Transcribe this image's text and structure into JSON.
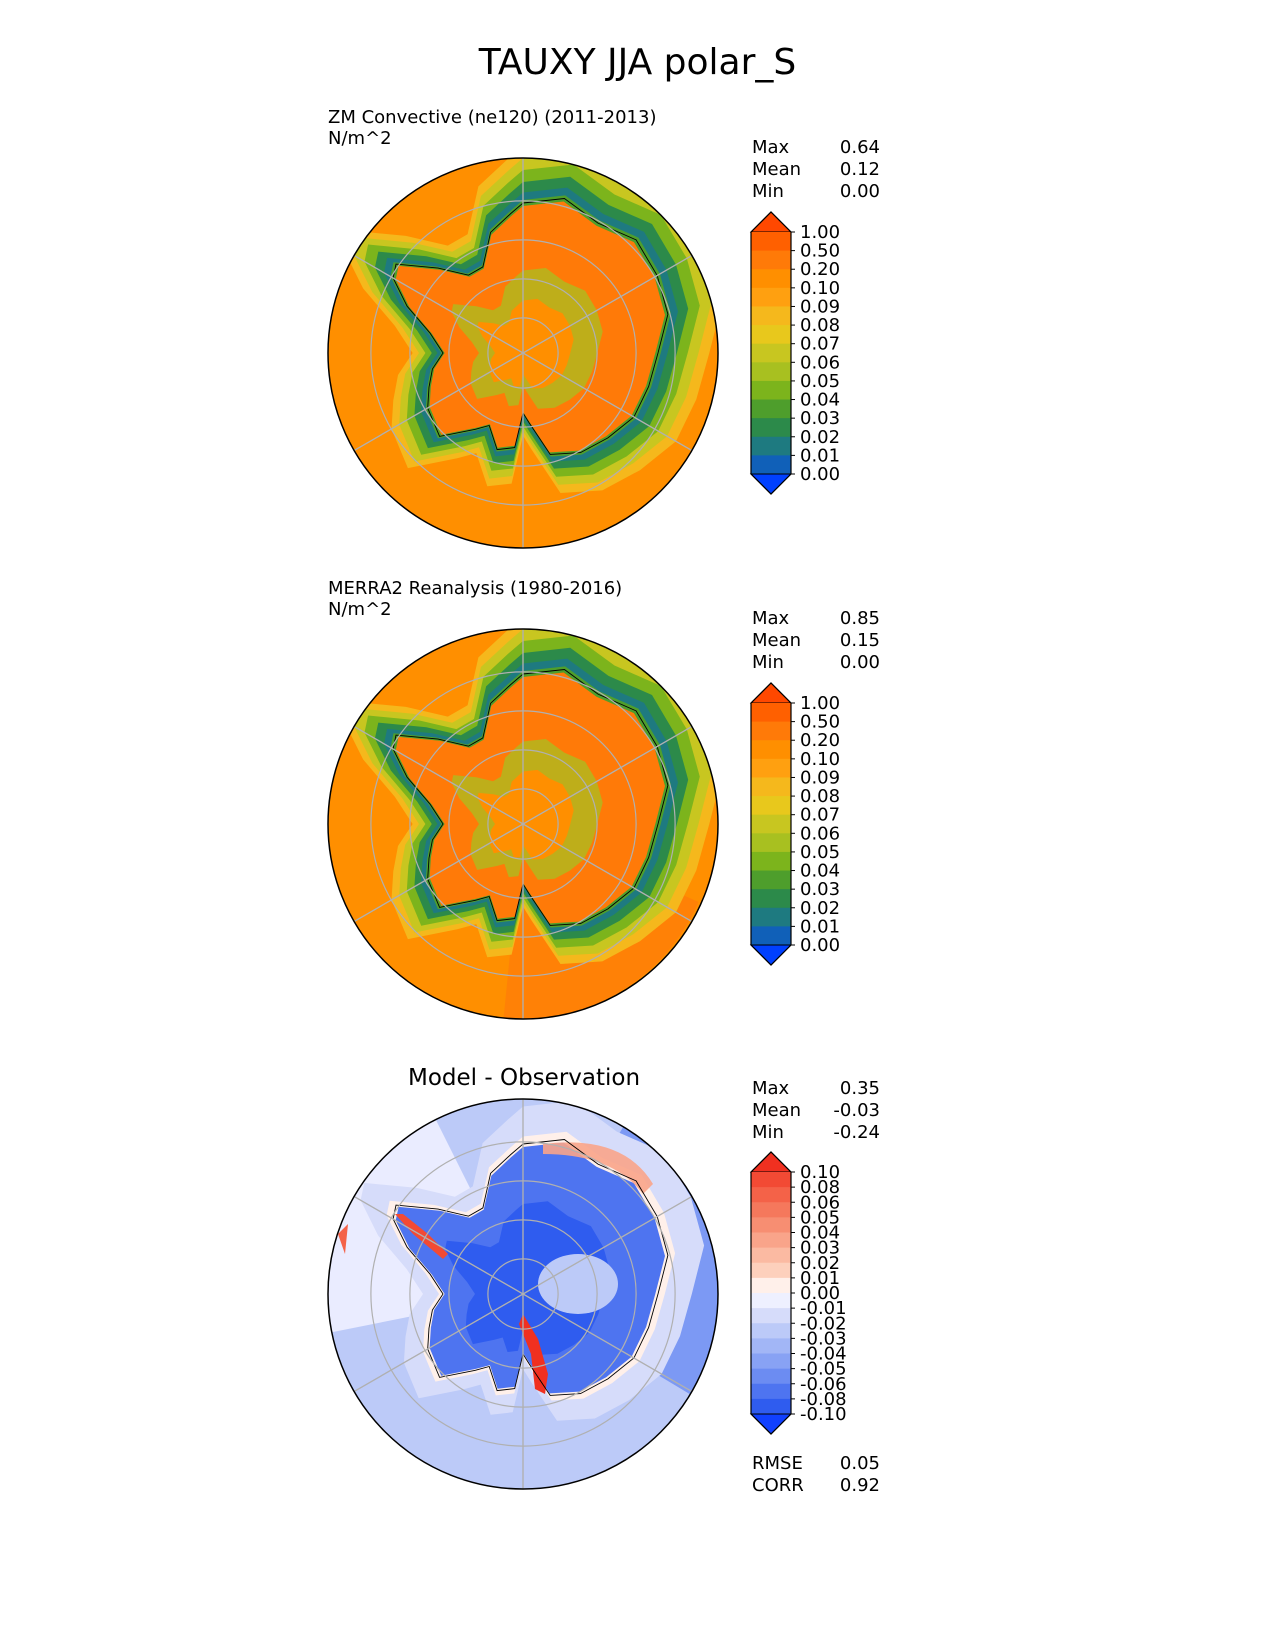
{
  "figure": {
    "title": "TAUXY JJA polar_S"
  },
  "chart_data": [
    {
      "type": "heatmap",
      "projection": "south polar stereographic",
      "title": "ZM Convective (ne120) (2011-2013)",
      "units": "N/m^2",
      "stats": {
        "max_label": "Max",
        "max": "0.64",
        "mean_label": "Mean",
        "mean": "0.12",
        "min_label": "Min",
        "min": "0.00"
      },
      "colorbar": {
        "levels": [
          "1.00",
          "0.50",
          "0.20",
          "0.10",
          "0.09",
          "0.08",
          "0.07",
          "0.06",
          "0.05",
          "0.04",
          "0.03",
          "0.02",
          "0.01",
          "0.00"
        ],
        "colors": [
          "#ff4800",
          "#ff6000",
          "#ff7a08",
          "#ff8f00",
          "#ffa010",
          "#f5b81c",
          "#e8c81c",
          "#c8c620",
          "#a8c020",
          "#7cb41c",
          "#4e9e2c",
          "#2c8a4a",
          "#1e7a80",
          "#1060b8",
          "#0040ff"
        ],
        "extend": "both"
      }
    },
    {
      "type": "heatmap",
      "projection": "south polar stereographic",
      "title": "MERRA2 Reanalysis (1980-2016)",
      "units": "N/m^2",
      "stats": {
        "max_label": "Max",
        "max": "0.85",
        "mean_label": "Mean",
        "mean": "0.15",
        "min_label": "Min",
        "min": "0.00"
      },
      "colorbar": {
        "levels": [
          "1.00",
          "0.50",
          "0.20",
          "0.10",
          "0.09",
          "0.08",
          "0.07",
          "0.06",
          "0.05",
          "0.04",
          "0.03",
          "0.02",
          "0.01",
          "0.00"
        ],
        "colors": [
          "#ff4800",
          "#ff6000",
          "#ff7a08",
          "#ff8f00",
          "#ffa010",
          "#f5b81c",
          "#e8c81c",
          "#c8c620",
          "#a8c020",
          "#7cb41c",
          "#4e9e2c",
          "#2c8a4a",
          "#1e7a80",
          "#1060b8",
          "#0040ff"
        ],
        "extend": "both"
      }
    },
    {
      "type": "heatmap",
      "projection": "south polar stereographic",
      "title": "Model - Observation",
      "stats": {
        "max_label": "Max",
        "max": "0.35",
        "mean_label": "Mean",
        "mean": "-0.03",
        "min_label": "Min",
        "min": "-0.24"
      },
      "metrics": {
        "rmse_label": "RMSE",
        "rmse": "0.05",
        "corr_label": "CORR",
        "corr": "0.92"
      },
      "colorbar": {
        "levels": [
          "0.10",
          "0.08",
          "0.06",
          "0.05",
          "0.04",
          "0.03",
          "0.02",
          "0.01",
          "0.00",
          "-0.01",
          "-0.02",
          "-0.03",
          "-0.04",
          "-0.05",
          "-0.06",
          "-0.08",
          "-0.10"
        ],
        "colors": [
          "#f03020",
          "#f24a34",
          "#f46248",
          "#f5785c",
          "#f78e72",
          "#f9a48a",
          "#fbbaa2",
          "#fdd0bc",
          "#fff0ea",
          "#eef0ff",
          "#d6dcfa",
          "#bccaf8",
          "#a2b6f6",
          "#88a2f4",
          "#6c8cf2",
          "#4e74f0",
          "#2f5cef",
          "#1040ff"
        ],
        "extend": "both"
      }
    }
  ]
}
